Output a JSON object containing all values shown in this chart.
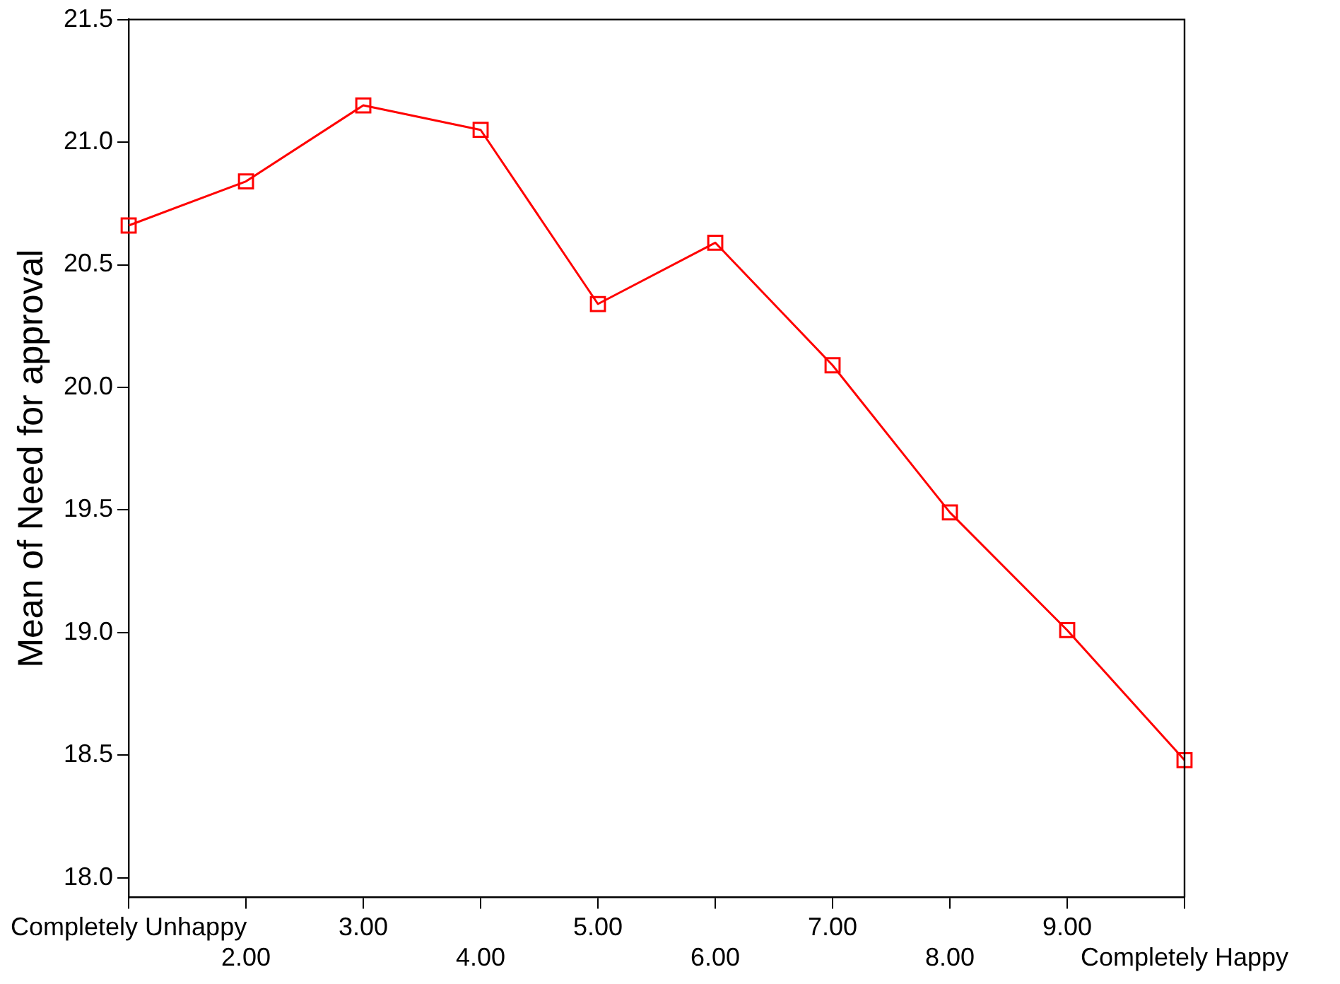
{
  "chart_data": {
    "type": "line",
    "ylabel": "Mean of Need for approval",
    "categories": [
      "Completely Unhappy",
      "2.00",
      "3.00",
      "4.00",
      "5.00",
      "6.00",
      "7.00",
      "8.00",
      "9.00",
      "Completely Happy"
    ],
    "series": [
      {
        "color": "#ff0000",
        "values": [
          20.66,
          20.84,
          21.15,
          21.05,
          20.34,
          20.59,
          20.09,
          19.49,
          19.01,
          18.48
        ]
      }
    ],
    "ylim": [
      17.92,
      21.5
    ],
    "yticks": [
      {
        "value": 18,
        "label": "18.0"
      },
      18.5,
      {
        "value": 19,
        "label": "19.0"
      },
      19.5,
      {
        "value": 20,
        "label": "20.0"
      },
      20.5,
      {
        "value": 21,
        "label": "21.0"
      },
      21.5
    ],
    "grid": false,
    "legend": false,
    "marker": "square",
    "line_style": "solid"
  }
}
